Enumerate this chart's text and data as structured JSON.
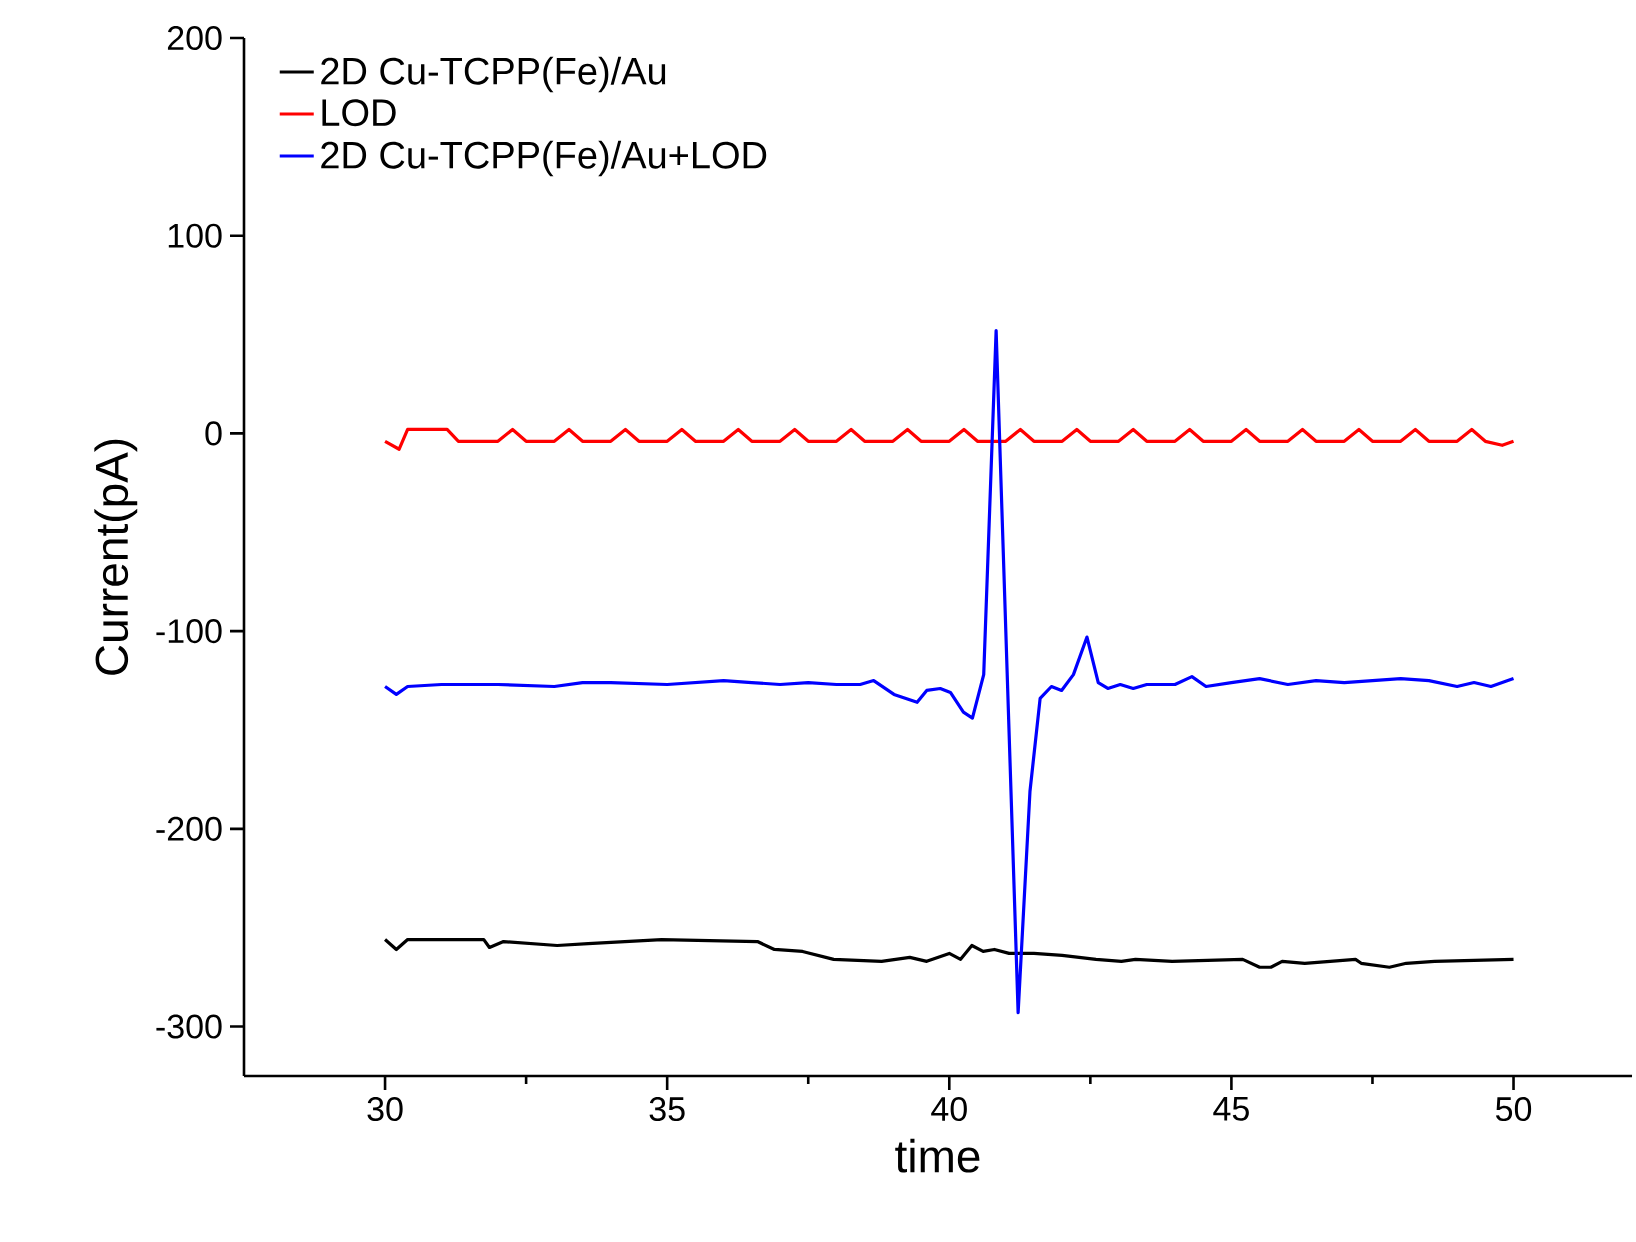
{
  "chart_data": {
    "type": "line",
    "xlabel": "time",
    "ylabel": "Current(pA)",
    "xlim": [
      27.5,
      52.1
    ],
    "ylim": [
      -325,
      200
    ],
    "xticks": [
      30,
      35,
      40,
      45,
      50
    ],
    "yticks": [
      -300,
      -200,
      -100,
      0,
      100,
      200
    ],
    "grid": false,
    "legend": "top left",
    "marker": "none",
    "line_style": "solid",
    "series": [
      {
        "name": "2D Cu-TCPP(Fe)/Au",
        "color": "#000000",
        "x": [
          30,
          30.2,
          30.4,
          31.75,
          31.85,
          32.1,
          33.05,
          33.6,
          34.9,
          36.6,
          36.9,
          37.4,
          37.95,
          38.8,
          39.3,
          39.6,
          40.0,
          40.2,
          40.4,
          40.6,
          40.8,
          41.06,
          41.5,
          42.0,
          42.6,
          43.05,
          43.3,
          43.95,
          45.2,
          45.5,
          45.7,
          45.9,
          46.3,
          47.2,
          47.3,
          47.8,
          48.1,
          48.6,
          50.0
        ],
        "values": [
          -256,
          -261,
          -256,
          -256,
          -260,
          -257,
          -259,
          -258,
          -256,
          -257,
          -261,
          -262,
          -266,
          -267,
          -265,
          -267,
          -263,
          -266,
          -259,
          -262,
          -261,
          -263,
          -263,
          -264,
          -266,
          -267,
          -266,
          -267,
          -266,
          -270,
          -270,
          -267,
          -268,
          -266,
          -268,
          -270,
          -268,
          -267,
          -266
        ]
      },
      {
        "name": "LOD",
        "color": "#ff0000",
        "x": [
          30,
          30.25,
          30.4,
          31.1,
          31.3,
          32.0,
          32.26,
          32.5,
          33.0,
          33.26,
          33.5,
          34.0,
          34.26,
          34.5,
          35.0,
          35.26,
          35.5,
          36.0,
          36.26,
          36.5,
          37.0,
          37.26,
          37.5,
          38.0,
          38.26,
          38.5,
          39.0,
          39.26,
          39.5,
          40.0,
          40.26,
          40.5,
          41.0,
          41.26,
          41.5,
          42.0,
          42.26,
          42.5,
          43.0,
          43.26,
          43.5,
          44.0,
          44.26,
          44.5,
          45.0,
          45.26,
          45.5,
          46.0,
          46.26,
          46.5,
          47.0,
          47.26,
          47.5,
          48.0,
          48.26,
          48.5,
          49.0,
          49.26,
          49.5,
          49.8,
          50.0
        ],
        "values": [
          -4,
          -8,
          2,
          2,
          -4,
          -4,
          2,
          -4,
          -4,
          2,
          -4,
          -4,
          2,
          -4,
          -4,
          2,
          -4,
          -4,
          2,
          -4,
          -4,
          2,
          -4,
          -4,
          2,
          -4,
          -4,
          2,
          -4,
          -4,
          2,
          -4,
          -4,
          2,
          -4,
          -4,
          2,
          -4,
          -4,
          2,
          -4,
          -4,
          2,
          -4,
          -4,
          2,
          -4,
          -4,
          2,
          -4,
          -4,
          2,
          -4,
          -4,
          2,
          -4,
          -4,
          2,
          -4,
          -6,
          -4
        ]
      },
      {
        "name": "2D Cu-TCPP(Fe)/Au+LOD",
        "color": "#0000ff",
        "x": [
          30,
          30.2,
          30.4,
          31,
          32,
          33,
          33.5,
          34,
          35,
          36,
          36.5,
          37,
          37.5,
          38,
          38.42,
          38.66,
          39.02,
          39.43,
          39.6,
          39.84,
          40.02,
          40.25,
          40.41,
          40.61,
          40.83,
          41.22,
          41.43,
          41.61,
          41.81,
          41.99,
          42.2,
          42.44,
          42.64,
          42.81,
          43.03,
          43.26,
          43.5,
          44.0,
          44.3,
          44.55,
          45,
          45.5,
          46,
          46.5,
          47,
          47.5,
          48,
          48.5,
          49,
          49.3,
          49.6,
          50
        ],
        "values": [
          -128,
          -132,
          -128,
          -127,
          -127,
          -128,
          -126,
          -126,
          -127,
          -125,
          -126,
          -127,
          -126,
          -127,
          -127,
          -125,
          -132,
          -136,
          -130,
          -129,
          -131,
          -141,
          -144,
          -122,
          52,
          -293,
          -181,
          -134,
          -128,
          -130,
          -122,
          -103,
          -126,
          -129,
          -127,
          -129,
          -127,
          -127,
          -123,
          -128,
          -126,
          -124,
          -127,
          -125,
          -126,
          -125,
          -124,
          -125,
          -128,
          -126,
          -128,
          -124
        ]
      }
    ]
  }
}
